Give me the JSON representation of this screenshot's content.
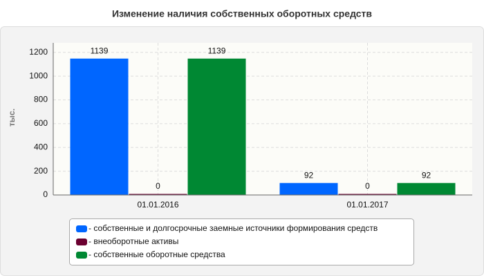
{
  "chart_data": {
    "type": "bar",
    "title": "Изменение наличия собственных оборотных средств",
    "y_label": "тыс.",
    "categories": [
      "01.01.2016",
      "01.01.2017"
    ],
    "series": [
      {
        "name": "- собственные и долгосрочные заемные источники формирования средств",
        "color": "#0066ff",
        "values": [
          1139,
          92
        ]
      },
      {
        "name": "- внеоборотные активы",
        "color": "#6b0030",
        "values": [
          0,
          0
        ]
      },
      {
        "name": "- собственные оборотные средства",
        "color": "#008833",
        "values": [
          1139,
          92
        ]
      }
    ],
    "ylim": [
      0,
      1280
    ],
    "yticks": [
      0,
      200,
      400,
      600,
      800,
      1000,
      1200
    ],
    "grid": true
  }
}
